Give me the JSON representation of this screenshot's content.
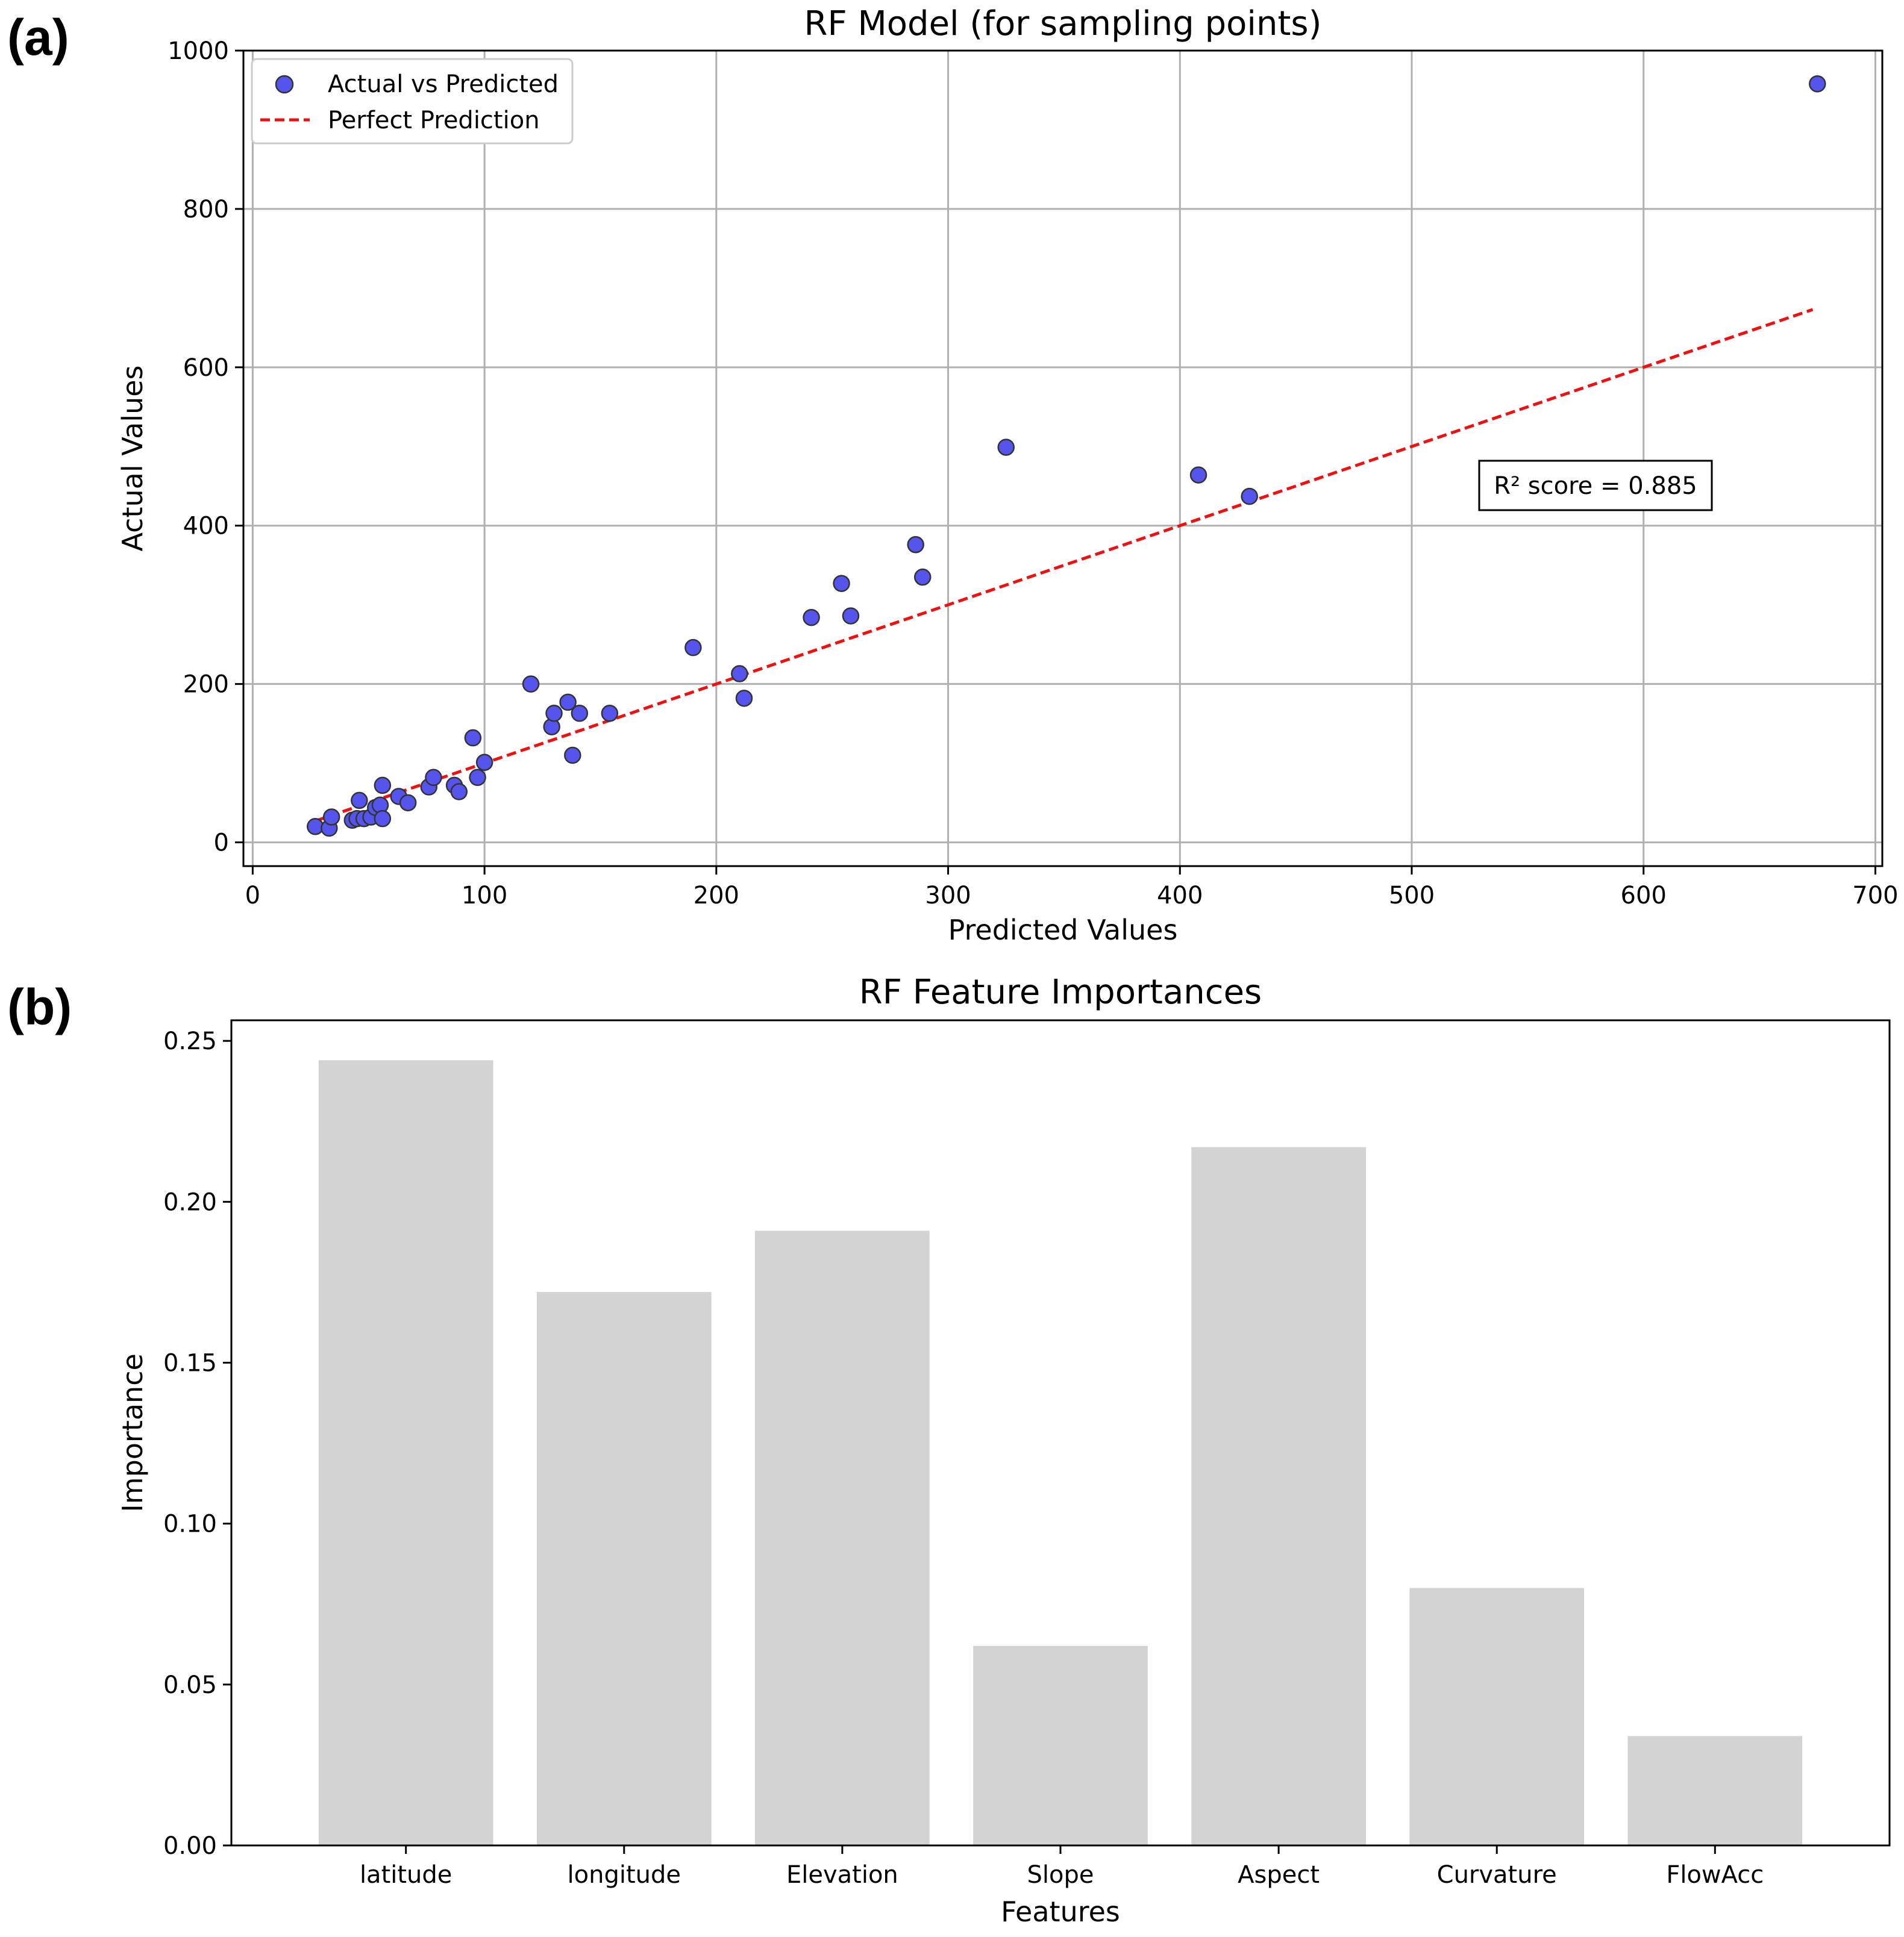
{
  "panels": {
    "a_label": "(a)",
    "b_label": "(b)"
  },
  "chart_data": [
    {
      "type": "scatter",
      "title": "RF Model (for sampling points)",
      "xlabel": "Predicted Values",
      "ylabel": "Actual Values",
      "xlim": [
        -4,
        703
      ],
      "ylim": [
        -30,
        1000
      ],
      "xticks": [
        0,
        100,
        200,
        300,
        400,
        500,
        600,
        700
      ],
      "xtick_labels": [
        "0",
        "100",
        "200",
        "300",
        "400",
        "500",
        "600",
        "700"
      ],
      "yticks": [
        0,
        200,
        400,
        600,
        800,
        1000
      ],
      "ytick_labels": [
        "0",
        "200",
        "400",
        "600",
        "800",
        "1000"
      ],
      "grid": true,
      "legend": {
        "position": "top-left",
        "entries": [
          "Actual vs Predicted",
          "Perfect Prediction"
        ]
      },
      "annotation": "R² score = 0.885",
      "point_color": "#5555ee",
      "line_color": "#ee1111",
      "perfect_line": {
        "x": [
          27,
          673
        ],
        "y": [
          27,
          673
        ]
      },
      "points": [
        {
          "x": 27,
          "y": 20
        },
        {
          "x": 33,
          "y": 18
        },
        {
          "x": 34,
          "y": 32
        },
        {
          "x": 43,
          "y": 28
        },
        {
          "x": 45,
          "y": 30
        },
        {
          "x": 46,
          "y": 53
        },
        {
          "x": 48,
          "y": 30
        },
        {
          "x": 51,
          "y": 32
        },
        {
          "x": 53,
          "y": 44
        },
        {
          "x": 55,
          "y": 47
        },
        {
          "x": 56,
          "y": 72
        },
        {
          "x": 56,
          "y": 30
        },
        {
          "x": 63,
          "y": 58
        },
        {
          "x": 67,
          "y": 50
        },
        {
          "x": 76,
          "y": 70
        },
        {
          "x": 78,
          "y": 82
        },
        {
          "x": 87,
          "y": 72
        },
        {
          "x": 89,
          "y": 64
        },
        {
          "x": 95,
          "y": 132
        },
        {
          "x": 97,
          "y": 82
        },
        {
          "x": 100,
          "y": 101
        },
        {
          "x": 120,
          "y": 200
        },
        {
          "x": 129,
          "y": 146
        },
        {
          "x": 130,
          "y": 163
        },
        {
          "x": 136,
          "y": 177
        },
        {
          "x": 138,
          "y": 110
        },
        {
          "x": 141,
          "y": 163
        },
        {
          "x": 154,
          "y": 163
        },
        {
          "x": 190,
          "y": 246
        },
        {
          "x": 210,
          "y": 213
        },
        {
          "x": 212,
          "y": 182
        },
        {
          "x": 241,
          "y": 284
        },
        {
          "x": 254,
          "y": 327
        },
        {
          "x": 258,
          "y": 286
        },
        {
          "x": 286,
          "y": 376
        },
        {
          "x": 289,
          "y": 335
        },
        {
          "x": 325,
          "y": 499
        },
        {
          "x": 408,
          "y": 464
        },
        {
          "x": 430,
          "y": 437
        },
        {
          "x": 675,
          "y": 958
        }
      ]
    },
    {
      "type": "bar",
      "title": "RF Feature Importances",
      "xlabel": "Features",
      "ylabel": "Importance",
      "ylim": [
        0,
        0.2564
      ],
      "yticks": [
        0,
        0.05,
        0.1,
        0.15,
        0.2,
        0.25
      ],
      "ytick_labels": [
        "0.00",
        "0.05",
        "0.10",
        "0.15",
        "0.20",
        "0.25"
      ],
      "bar_color": "#d3d3d3",
      "categories": [
        "latitude",
        "longitude",
        "Elevation",
        "Slope",
        "Aspect",
        "Curvature",
        "FlowAcc"
      ],
      "values": [
        0.244,
        0.172,
        0.191,
        0.062,
        0.217,
        0.08,
        0.034
      ]
    }
  ]
}
